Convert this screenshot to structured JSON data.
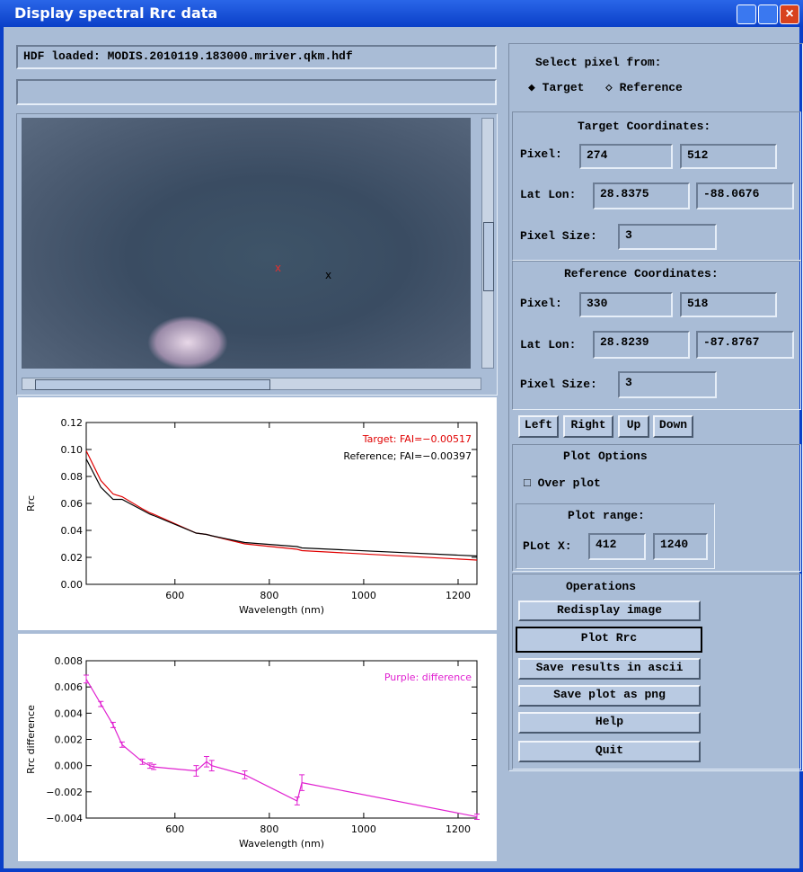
{
  "window": {
    "title": "Display spectral Rrc data"
  },
  "left": {
    "file_field": "HDF loaded: MODIS.2010119.183000.mriver.qkm.hdf",
    "image_markers": [
      "x",
      "x"
    ]
  },
  "right": {
    "select": {
      "label": "Select pixel from:",
      "options": [
        "Target",
        "Reference"
      ]
    },
    "target": {
      "title": "Target Coordinates:",
      "pixel_label": "Pixel:",
      "pixel": [
        "274",
        "512"
      ],
      "latlon_label": "Lat Lon:",
      "latlon": [
        "28.8375",
        "-88.0676"
      ],
      "size_label": "Pixel Size:",
      "size": "3"
    },
    "reference": {
      "title": "Reference Coordinates:",
      "pixel_label": "Pixel:",
      "pixel": [
        "330",
        "518"
      ],
      "latlon_label": "Lat Lon:",
      "latlon": [
        "28.8239",
        "-87.8767"
      ],
      "size_label": "Pixel Size:",
      "size": "3"
    },
    "nav": [
      "Left",
      "Right",
      "Up",
      "Down"
    ],
    "plot_options": {
      "title": "Plot Options",
      "overplot": "Over plot",
      "range_title": "Plot range:",
      "range_label": "PLot X:",
      "range": [
        "412",
        "1240"
      ]
    },
    "operations": {
      "title": "Operations",
      "buttons": [
        "Redisplay image",
        "Plot Rrc",
        "Save results in ascii",
        "Save plot as png",
        "Help",
        "Quit"
      ]
    }
  },
  "chart_data": [
    {
      "type": "line",
      "xlabel": "Wavelength (nm)",
      "ylabel": "Rrc",
      "x": [
        412,
        443,
        469,
        488,
        531,
        547,
        555,
        645,
        667,
        678,
        748,
        859,
        869,
        1240
      ],
      "xlim": [
        412,
        1240
      ],
      "ylim": [
        0,
        0.12
      ],
      "xticks": [
        600,
        800,
        1000,
        1200
      ],
      "yticks": [
        {
          "value": 0,
          "label": "0.00"
        },
        0.02,
        0.04,
        0.06,
        0.08,
        {
          "value": 0.1,
          "label": "0.10"
        },
        0.12
      ],
      "series": [
        {
          "name": "Target: FAI=−0.00517",
          "color": "#e00000",
          "values": [
            0.099,
            0.077,
            0.067,
            0.065,
            0.056,
            0.053,
            0.052,
            0.038,
            0.037,
            0.036,
            0.03,
            0.026,
            0.025,
            0.018
          ]
        },
        {
          "name": "Reference; FAI=−0.00397",
          "color": "#000000",
          "values": [
            0.093,
            0.072,
            0.063,
            0.063,
            0.055,
            0.052,
            0.051,
            0.038,
            0.037,
            0.036,
            0.031,
            0.028,
            0.027,
            0.021
          ]
        }
      ]
    },
    {
      "type": "line",
      "xlabel": "Wavelength (nm)",
      "ylabel": "Rrc difference",
      "x": [
        412,
        443,
        469,
        488,
        531,
        547,
        555,
        645,
        667,
        678,
        748,
        859,
        869,
        1240
      ],
      "xlim": [
        412,
        1240
      ],
      "ylim": [
        -0.004,
        0.008
      ],
      "xticks": [
        600,
        800,
        1000,
        1200
      ],
      "yticks": [
        {
          "value": -0.004,
          "label": "−0.004"
        },
        {
          "value": -0.002,
          "label": "−0.002"
        },
        {
          "value": 0,
          "label": "0.000"
        },
        0.002,
        0.004,
        0.006,
        0.008
      ],
      "series": [
        {
          "name": "Purple: difference",
          "color": "#e020d0",
          "values": [
            0.0066,
            0.0047,
            0.0031,
            0.0016,
            0.0003,
            0.0,
            -0.0001,
            -0.0004,
            0.0003,
            0.0,
            -0.0007,
            -0.0027,
            -0.0013,
            -0.0039
          ],
          "errors": [
            0.0003,
            0.0002,
            0.0002,
            0.0002,
            0.0002,
            0.0002,
            0.0002,
            0.0004,
            0.0004,
            0.0004,
            0.0003,
            0.0003,
            0.0006,
            0.0002
          ]
        }
      ]
    }
  ]
}
